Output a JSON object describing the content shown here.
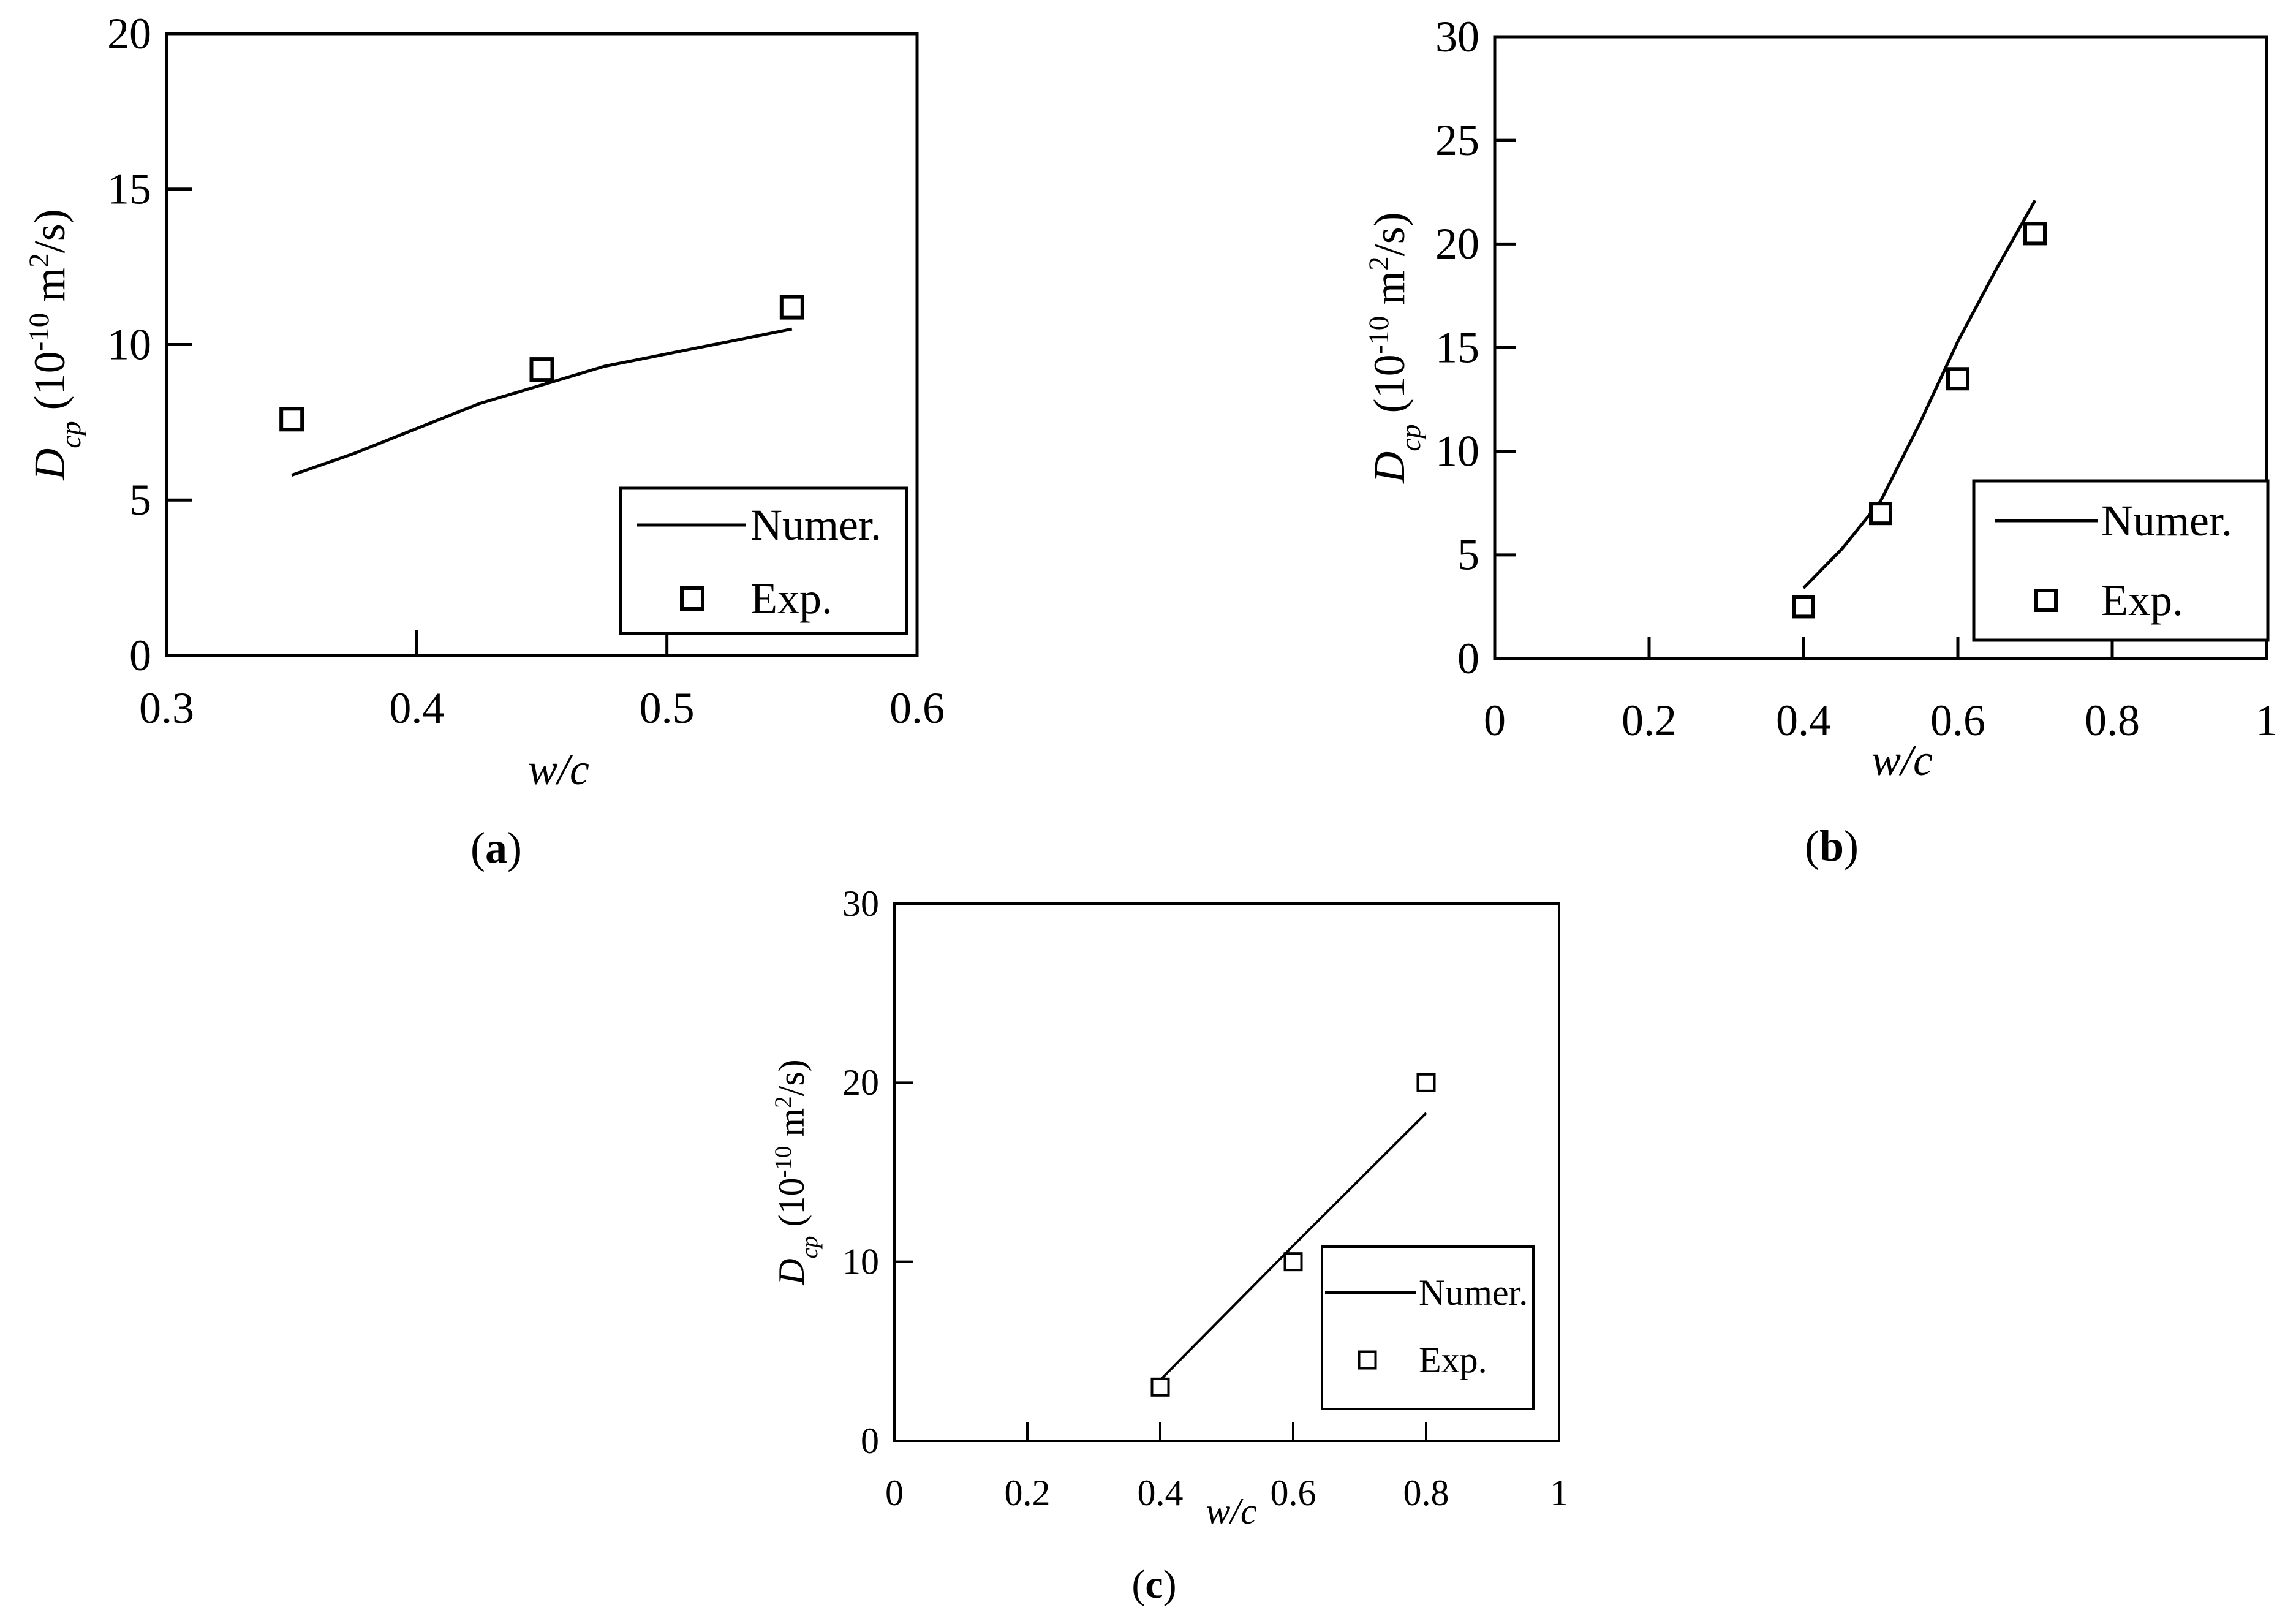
{
  "chart_data": [
    {
      "type": "line",
      "panel_label": "a",
      "xlabel": "w/c",
      "ylabel": {
        "symbol": "D",
        "subscript": "cp",
        "unit_prefix": " (10",
        "exponent": "-10",
        "unit_mid": " m",
        "unit_exp": "2",
        "unit_suffix": "/s)"
      },
      "xlim": [
        0.3,
        0.6
      ],
      "ylim": [
        0,
        20
      ],
      "xticks": [
        {
          "value": 0.3,
          "label": "0.3"
        },
        {
          "value": 0.4,
          "label": "0.4"
        },
        {
          "value": 0.5,
          "label": "0.5"
        },
        {
          "value": 0.6,
          "label": "0.6"
        }
      ],
      "yticks": [
        {
          "value": 0,
          "label": "0"
        },
        {
          "value": 5,
          "label": "5"
        },
        {
          "value": 10,
          "label": "10"
        },
        {
          "value": 15,
          "label": "15"
        },
        {
          "value": 20,
          "label": "20"
        }
      ],
      "legend_position": "bottom-right",
      "grid": false,
      "series": [
        {
          "name": "Numer.",
          "kind": "line",
          "points": [
            [
              0.35,
              5.8
            ],
            [
              0.375,
              6.5
            ],
            [
              0.4,
              7.3
            ],
            [
              0.425,
              8.1
            ],
            [
              0.45,
              8.7
            ],
            [
              0.475,
              9.3
            ],
            [
              0.5,
              9.7
            ],
            [
              0.525,
              10.1
            ],
            [
              0.55,
              10.5
            ]
          ]
        },
        {
          "name": "Exp.",
          "kind": "marker",
          "points": [
            [
              0.35,
              7.6
            ],
            [
              0.45,
              9.2
            ],
            [
              0.55,
              11.2
            ]
          ]
        }
      ]
    },
    {
      "type": "line",
      "panel_label": "b",
      "xlabel": "w/c",
      "ylabel": {
        "symbol": "D",
        "subscript": "cp",
        "unit_prefix": " (10",
        "exponent": "-10",
        "unit_mid": " m",
        "unit_exp": "2",
        "unit_suffix": "/s)"
      },
      "xlim": [
        0,
        1
      ],
      "ylim": [
        0,
        30
      ],
      "xticks": [
        {
          "value": 0,
          "label": "0"
        },
        {
          "value": 0.2,
          "label": "0.2"
        },
        {
          "value": 0.4,
          "label": "0.4"
        },
        {
          "value": 0.6,
          "label": "0.6"
        },
        {
          "value": 0.8,
          "label": "0.8"
        },
        {
          "value": 1,
          "label": "1"
        }
      ],
      "yticks": [
        {
          "value": 0,
          "label": "0"
        },
        {
          "value": 5,
          "label": "5"
        },
        {
          "value": 10,
          "label": "10"
        },
        {
          "value": 15,
          "label": "15"
        },
        {
          "value": 20,
          "label": "20"
        },
        {
          "value": 25,
          "label": "25"
        },
        {
          "value": 30,
          "label": "30"
        }
      ],
      "legend_position": "bottom-right",
      "grid": false,
      "series": [
        {
          "name": "Numer.",
          "kind": "line",
          "points": [
            [
              0.4,
              3.4
            ],
            [
              0.45,
              5.3
            ],
            [
              0.5,
              7.6
            ],
            [
              0.55,
              11.3
            ],
            [
              0.6,
              15.3
            ],
            [
              0.65,
              18.8
            ],
            [
              0.7,
              22.1
            ]
          ]
        },
        {
          "name": "Exp.",
          "kind": "marker",
          "points": [
            [
              0.4,
              2.5
            ],
            [
              0.5,
              7.0
            ],
            [
              0.6,
              13.5
            ],
            [
              0.7,
              20.5
            ]
          ]
        }
      ]
    },
    {
      "type": "line",
      "panel_label": "c",
      "xlabel": "w/c",
      "ylabel": {
        "symbol": "D",
        "subscript": "cp",
        "unit_prefix": " (10",
        "exponent": "-10",
        "unit_mid": " m",
        "unit_exp": "2",
        "unit_suffix": "/s)"
      },
      "xlim": [
        0,
        1
      ],
      "ylim": [
        0,
        30
      ],
      "xticks": [
        {
          "value": 0,
          "label": "0"
        },
        {
          "value": 0.2,
          "label": "0.2"
        },
        {
          "value": 0.4,
          "label": "0.4"
        },
        {
          "value": 0.6,
          "label": "0.6"
        },
        {
          "value": 0.8,
          "label": "0.8"
        },
        {
          "value": 1,
          "label": "1"
        }
      ],
      "yticks": [
        {
          "value": 0,
          "label": "0"
        },
        {
          "value": 10,
          "label": "10"
        },
        {
          "value": 20,
          "label": "20"
        },
        {
          "value": 30,
          "label": "30"
        }
      ],
      "legend_position": "bottom-right",
      "grid": false,
      "series": [
        {
          "name": "Numer.",
          "kind": "line",
          "points": [
            [
              0.4,
              3.4
            ],
            [
              0.6,
              10.9
            ],
            [
              0.8,
              18.3
            ]
          ]
        },
        {
          "name": "Exp.",
          "kind": "marker",
          "points": [
            [
              0.4,
              3.0
            ],
            [
              0.6,
              10.0
            ],
            [
              0.8,
              20.0
            ]
          ]
        }
      ]
    }
  ]
}
